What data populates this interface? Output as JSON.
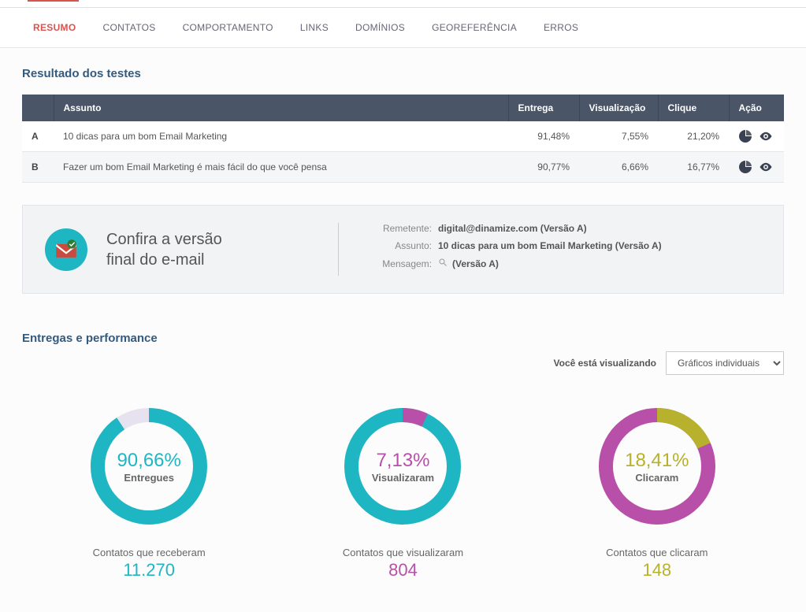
{
  "tabs": [
    {
      "label": "RESUMO",
      "active": true
    },
    {
      "label": "CONTATOS"
    },
    {
      "label": "COMPORTAMENTO"
    },
    {
      "label": "LINKS"
    },
    {
      "label": "DOMÍNIOS"
    },
    {
      "label": "GEOREFERÊNCIA"
    },
    {
      "label": "ERROS"
    }
  ],
  "resultsTitle": "Resultado dos testes",
  "tableHeaders": {
    "subject": "Assunto",
    "delivery": "Entrega",
    "views": "Visualização",
    "clicks": "Clique",
    "action": "Ação"
  },
  "rows": [
    {
      "letter": "A",
      "subject": "10 dicas para um bom Email Marketing",
      "delivery": "91,48%",
      "views": "7,55%",
      "clicks": "21,20%"
    },
    {
      "letter": "B",
      "subject": "Fazer um bom Email Marketing é mais fácil do que você pensa",
      "delivery": "90,77%",
      "views": "6,66%",
      "clicks": "16,77%"
    }
  ],
  "versionCard": {
    "leadLine1": "Confira a versão",
    "leadLine2": "final do e-mail",
    "senderLabel": "Remetente:",
    "sender": "digital@dinamize.com (Versão A)",
    "subjectLabel": "Assunto:",
    "subject": "10 dicas para um bom Email Marketing (Versão A)",
    "messageLabel": "Mensagem:",
    "message": "(Versão A)"
  },
  "perfTitle": "Entregas e performance",
  "vizLabel": "Você está visualizando",
  "vizOptions": [
    "Gráficos individuais"
  ],
  "donuts": [
    {
      "pct": "90,66%",
      "pctValue": 90.66,
      "sub": "Entregues",
      "caption": "Contatos que receberam",
      "count": "11.270",
      "color": "#1fb6c4",
      "trackColor": "#e6e2ef",
      "pctClass": "teal"
    },
    {
      "pct": "7,13%",
      "pctValue": 7.13,
      "sub": "Visualizaram",
      "caption": "Contatos que visualizaram",
      "count": "804",
      "color": "#b84fa8",
      "trackColor": "#1fb6c4",
      "pctClass": "purple"
    },
    {
      "pct": "18,41%",
      "pctValue": 18.41,
      "sub": "Clicaram",
      "caption": "Contatos que clicaram",
      "count": "148",
      "color": "#b8b12e",
      "trackColor": "#b84fa8",
      "pctClass": "olive"
    }
  ],
  "chartStyle": {
    "radius": 65,
    "strokeWidth": 18,
    "size": 160
  }
}
